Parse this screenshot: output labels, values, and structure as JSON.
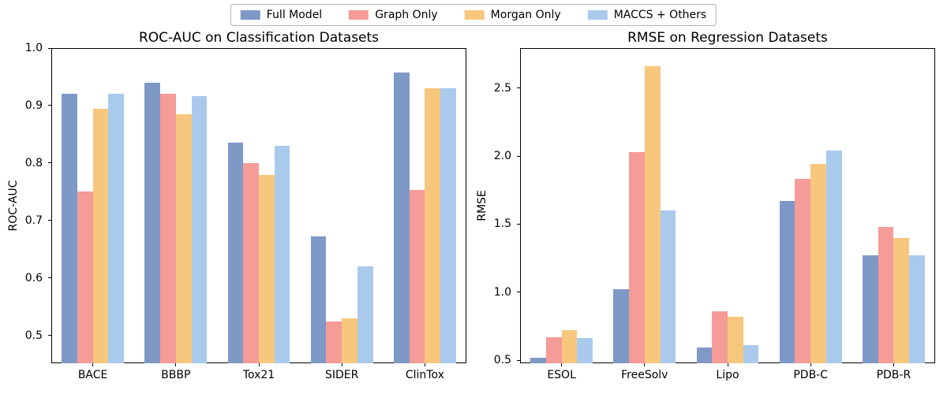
{
  "figure": {
    "background": "#ffffff",
    "axis_color": "#000000"
  },
  "legend": {
    "position": "top-center",
    "items": [
      {
        "label": "Full Model",
        "color": "#7f99c7"
      },
      {
        "label": "Graph Only",
        "color": "#f59b98"
      },
      {
        "label": "Morgan Only",
        "color": "#f7c77e"
      },
      {
        "label": "MACCS + Others",
        "color": "#a9caec"
      }
    ]
  },
  "chart_data": [
    {
      "type": "bar",
      "title": "ROC-AUC on Classification Datasets",
      "xlabel": "",
      "ylabel": "ROC-AUC",
      "categories": [
        "BACE",
        "BBBP",
        "Tox21",
        "SIDER",
        "ClinTox"
      ],
      "series": [
        {
          "name": "Full Model",
          "color": "#7f99c7",
          "values": [
            0.92,
            0.94,
            0.835,
            0.672,
            0.958
          ]
        },
        {
          "name": "Graph Only",
          "color": "#f59b98",
          "values": [
            0.75,
            0.92,
            0.8,
            0.525,
            0.754
          ]
        },
        {
          "name": "Morgan Only",
          "color": "#f7c77e",
          "values": [
            0.895,
            0.885,
            0.78,
            0.53,
            0.93
          ]
        },
        {
          "name": "MACCS + Others",
          "color": "#a9caec",
          "values": [
            0.92,
            0.916,
            0.83,
            0.62,
            0.93
          ]
        }
      ],
      "ylim": [
        0.452,
        1.0
      ],
      "yticks": [
        0.5,
        0.6,
        0.7,
        0.8,
        0.9,
        1.0
      ],
      "ytick_labels": [
        "0.5",
        "0.6",
        "0.7",
        "0.8",
        "0.9",
        "1.0"
      ],
      "grid": false,
      "legend_position": "shared-top"
    },
    {
      "type": "bar",
      "title": "RMSE on Regression Datasets",
      "xlabel": "",
      "ylabel": "RMSE",
      "categories": [
        "ESOL",
        "FreeSolv",
        "Lipo",
        "PDB-C",
        "PDB-R"
      ],
      "series": [
        {
          "name": "Full Model",
          "color": "#7f99c7",
          "values": [
            0.52,
            1.02,
            0.59,
            1.67,
            1.27
          ]
        },
        {
          "name": "Graph Only",
          "color": "#f59b98",
          "values": [
            0.67,
            2.03,
            0.86,
            1.83,
            1.48
          ]
        },
        {
          "name": "Morgan Only",
          "color": "#f7c77e",
          "values": [
            0.72,
            2.66,
            0.82,
            1.94,
            1.4
          ]
        },
        {
          "name": "MACCS + Others",
          "color": "#a9caec",
          "values": [
            0.66,
            1.6,
            0.61,
            2.04,
            1.27
          ]
        }
      ],
      "ylim": [
        0.477,
        2.794
      ],
      "yticks": [
        0.5,
        1.0,
        1.5,
        2.0,
        2.5
      ],
      "ytick_labels": [
        "0.5",
        "1.0",
        "1.5",
        "2.0",
        "2.5"
      ],
      "grid": false,
      "legend_position": "shared-top"
    }
  ]
}
